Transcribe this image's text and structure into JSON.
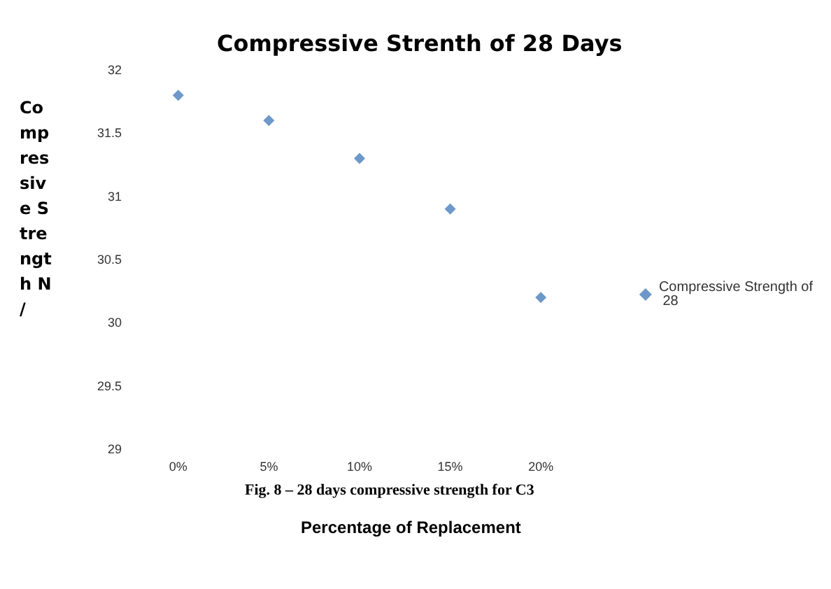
{
  "chart_data": {
    "type": "scatter",
    "title": "Compressive Strenth of 28 Days",
    "xlabel": "Percentage of Replacement",
    "ylabel": "Compressive Strength N/",
    "categories": [
      "0%",
      "5%",
      "10%",
      "15%",
      "20%"
    ],
    "series": [
      {
        "name": "Compressive Strength of 28",
        "color": "#4a7ebb",
        "values": [
          31.8,
          31.6,
          31.3,
          30.9,
          30.2
        ]
      }
    ],
    "ylim": [
      29,
      32
    ],
    "yticks": [
      29,
      29.5,
      30,
      30.5,
      31,
      31.5,
      32
    ],
    "grid": false,
    "legend": "right",
    "marker": "diamond",
    "annotations": [
      "Fig. 8 – 28 days compressive strength for C3"
    ]
  }
}
